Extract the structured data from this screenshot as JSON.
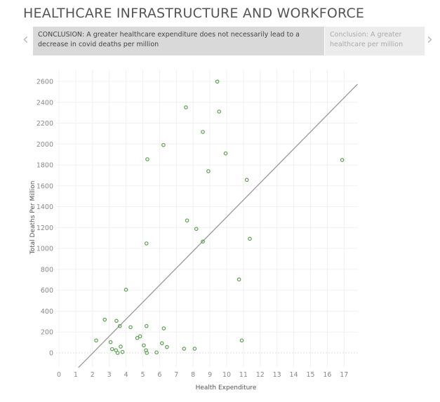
{
  "header": {
    "title": "HEALTHCARE INFRASTRUCTURE AND WORKFORCE"
  },
  "story": {
    "prev_icon": "chevron-left-icon",
    "next_icon": "chevron-right-icon",
    "points": [
      {
        "label": "CONCLUSION: A greater healthcare expenditure does not necessarily lead to a decrease in covid deaths per million",
        "active": true
      },
      {
        "label": "Conclusion: A greater healthcare per million",
        "active": false
      }
    ]
  },
  "chart_data": {
    "type": "scatter",
    "xlabel": "Health Expenditure",
    "ylabel": "Total Deaths Per Million",
    "xlim": [
      0,
      17.8
    ],
    "ylim": [
      -140,
      2650
    ],
    "xticks": [
      0,
      1,
      2,
      3,
      4,
      5,
      6,
      7,
      8,
      9,
      10,
      11,
      12,
      13,
      14,
      15,
      16,
      17
    ],
    "yticks": [
      0,
      200,
      400,
      600,
      800,
      1000,
      1200,
      1400,
      1600,
      1800,
      2000,
      2200,
      2400,
      2600
    ],
    "grid": true,
    "marker_color": "#59a14f",
    "trend_line": {
      "slope": 163.1,
      "intercept": -330,
      "color": "#999999"
    },
    "points": [
      [
        9.44,
        2598
      ],
      [
        7.57,
        2351
      ],
      [
        9.55,
        2311
      ],
      [
        8.58,
        2116
      ],
      [
        6.23,
        1991
      ],
      [
        5.27,
        1854
      ],
      [
        9.94,
        1910
      ],
      [
        8.91,
        1740
      ],
      [
        11.2,
        1657
      ],
      [
        16.89,
        1847
      ],
      [
        7.64,
        1268
      ],
      [
        8.19,
        1187
      ],
      [
        5.22,
        1048
      ],
      [
        8.58,
        1066
      ],
      [
        11.38,
        1093
      ],
      [
        10.74,
        703
      ],
      [
        4.0,
        605
      ],
      [
        2.73,
        318
      ],
      [
        3.43,
        307
      ],
      [
        3.63,
        257
      ],
      [
        4.27,
        246
      ],
      [
        5.22,
        257
      ],
      [
        6.25,
        235
      ],
      [
        2.22,
        119
      ],
      [
        3.08,
        103
      ],
      [
        4.67,
        143
      ],
      [
        4.84,
        159
      ],
      [
        6.14,
        92
      ],
      [
        5.06,
        72
      ],
      [
        6.44,
        56
      ],
      [
        3.68,
        60
      ],
      [
        3.17,
        36
      ],
      [
        3.4,
        25
      ],
      [
        3.5,
        0
      ],
      [
        3.79,
        9
      ],
      [
        5.19,
        25
      ],
      [
        5.24,
        0
      ],
      [
        5.82,
        5
      ],
      [
        7.46,
        40
      ],
      [
        8.09,
        40
      ],
      [
        10.9,
        119
      ]
    ]
  }
}
